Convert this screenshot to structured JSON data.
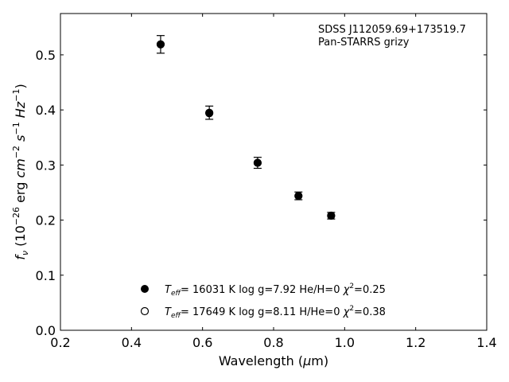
{
  "chart_data": {
    "type": "scatter",
    "annotation": [
      "SDSS J112059.69+173519.7",
      "Pan-STARRS grizy"
    ],
    "xlabel": "Wavelength (μm)",
    "ylabel": "fν (10⁻²⁶ erg cm⁻² s⁻¹ Hz⁻¹)",
    "xlim": [
      0.2,
      1.4
    ],
    "ylim": [
      0.0,
      0.575
    ],
    "xticks": [
      "0.2",
      "0.4",
      "0.6",
      "0.8",
      "1.0",
      "1.2",
      "1.4"
    ],
    "yticks": [
      "0.0",
      "0.1",
      "0.2",
      "0.3",
      "0.4",
      "0.5"
    ],
    "grid": false,
    "series": [
      {
        "style": "filled-circle",
        "color": "#000000",
        "points": [
          {
            "x": 0.482,
            "y": 0.519,
            "err": 0.016
          },
          {
            "x": 0.619,
            "y": 0.395,
            "err": 0.012
          },
          {
            "x": 0.755,
            "y": 0.304,
            "err": 0.01
          },
          {
            "x": 0.87,
            "y": 0.244,
            "err": 0.007
          },
          {
            "x": 0.962,
            "y": 0.208,
            "err": 0.006
          }
        ]
      },
      {
        "style": "open-circle",
        "color": "#000000",
        "points": [
          {
            "x": 0.482,
            "y": 0.519
          },
          {
            "x": 0.619,
            "y": 0.394
          },
          {
            "x": 0.755,
            "y": 0.304
          },
          {
            "x": 0.87,
            "y": 0.244
          },
          {
            "x": 0.962,
            "y": 0.208
          }
        ]
      }
    ],
    "legend": {
      "placement": "lower-center",
      "entries": [
        {
          "marker": "filled-circle",
          "teff": "= 16031 K",
          "logg": "log g=7.92",
          "comp": "He/H=0",
          "chi2": "=0.25"
        },
        {
          "marker": "open-circle",
          "teff": "= 17649 K",
          "logg": "log g=8.11",
          "comp": "H/He=0",
          "chi2": "=0.38"
        }
      ]
    }
  }
}
